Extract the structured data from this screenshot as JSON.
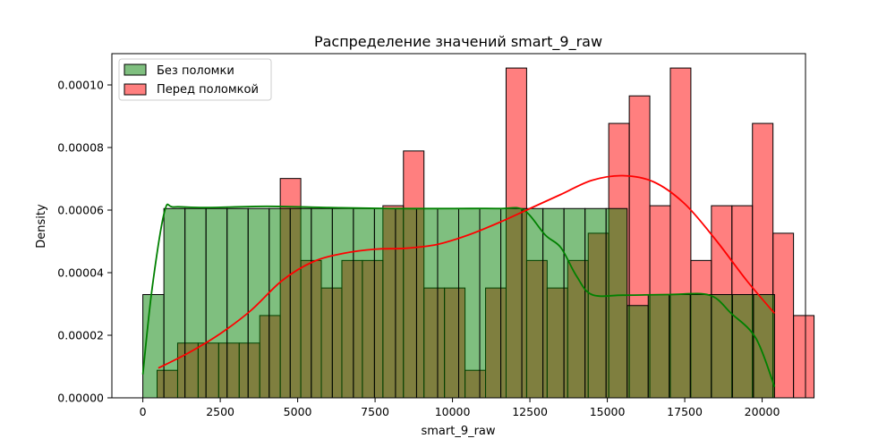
{
  "chart_data": {
    "type": "bar",
    "title": "Распределение значений smart_9_raw",
    "xlabel": "smart_9_raw",
    "ylabel": "Density",
    "xlim": [
      -1000,
      21400
    ],
    "ylim": [
      0,
      0.00011
    ],
    "xticks": [
      0,
      2500,
      5000,
      7500,
      10000,
      12500,
      15000,
      17500,
      20000
    ],
    "xtick_labels": [
      "0",
      "2500",
      "5000",
      "7500",
      "10000",
      "12500",
      "15000",
      "17500",
      "20000"
    ],
    "yticks": [
      0,
      2e-05,
      4e-05,
      6e-05,
      8e-05,
      0.0001
    ],
    "ytick_labels": [
      "0.00000",
      "0.00002",
      "0.00004",
      "0.00006",
      "0.00008",
      "0.00010"
    ],
    "legend_position": "upper-left",
    "grid": false,
    "series": [
      {
        "name": "Без поломки",
        "color": "#008000",
        "bin_start": 0,
        "bin_width": 680,
        "values": [
          3.3e-05,
          6.05e-05,
          6.05e-05,
          6.05e-05,
          6.05e-05,
          6.05e-05,
          6.05e-05,
          6.05e-05,
          6.05e-05,
          6.05e-05,
          6.05e-05,
          6.05e-05,
          6.05e-05,
          6.05e-05,
          6.05e-05,
          6.05e-05,
          6.05e-05,
          6.05e-05,
          6.05e-05,
          6.05e-05,
          6.05e-05,
          6.05e-05,
          6.05e-05,
          2.95e-05,
          3.3e-05,
          3.3e-05,
          3.3e-05,
          3.3e-05,
          3.3e-05,
          3.3e-05
        ]
      },
      {
        "name": "Перед поломкой",
        "color": "#ff0000",
        "bin_start": 460,
        "bin_width": 663,
        "values": [
          8.8e-06,
          1.75e-05,
          1.75e-05,
          1.75e-05,
          1.75e-05,
          2.63e-05,
          7.01e-05,
          4.39e-05,
          3.51e-05,
          4.39e-05,
          4.39e-05,
          6.14e-05,
          7.89e-05,
          3.51e-05,
          3.51e-05,
          8.8e-06,
          3.51e-05,
          0.0001054,
          4.39e-05,
          3.51e-05,
          4.39e-05,
          5.26e-05,
          8.77e-05,
          9.65e-05,
          6.14e-05,
          0.0001054,
          4.39e-05,
          6.14e-05,
          6.14e-05,
          8.77e-05,
          5.26e-05,
          2.63e-05
        ]
      }
    ],
    "kde": [
      {
        "name": "Без поломки",
        "color": "#008000",
        "x": [
          0,
          300,
          700,
          1000,
          2000,
          4000,
          6000,
          8000,
          10000,
          11500,
          12300,
          13000,
          13500,
          14000,
          14500,
          15500,
          17000,
          18300,
          19000,
          19800,
          20400
        ],
        "y": [
          7.5e-06,
          3.5e-05,
          5.95e-05,
          6.1e-05,
          6.08e-05,
          6.12e-05,
          6.08e-05,
          6.05e-05,
          6.05e-05,
          6.05e-05,
          6e-05,
          5.2e-05,
          4.8e-05,
          3.9e-05,
          3.3e-05,
          3.28e-05,
          3.3e-05,
          3.28e-05,
          2.7e-05,
          1.9e-05,
          3.5e-06
        ]
      },
      {
        "name": "Перед поломкой",
        "color": "#ff0000",
        "x": [
          500,
          1500,
          2500,
          3500,
          4500,
          5500,
          6500,
          7500,
          8500,
          9500,
          10500,
          11500,
          12500,
          13500,
          14500,
          15500,
          16500,
          17500,
          18500,
          19500,
          20400
        ],
        "y": [
          9.5e-06,
          1.45e-05,
          2.05e-05,
          2.8e-05,
          3.75e-05,
          4.35e-05,
          4.62e-05,
          4.75e-05,
          4.78e-05,
          4.9e-05,
          5.2e-05,
          5.6e-05,
          6.05e-05,
          6.5e-05,
          6.95e-05,
          7.1e-05,
          6.9e-05,
          6.2e-05,
          5.05e-05,
          3.75e-05,
          2.7e-05
        ]
      }
    ]
  }
}
